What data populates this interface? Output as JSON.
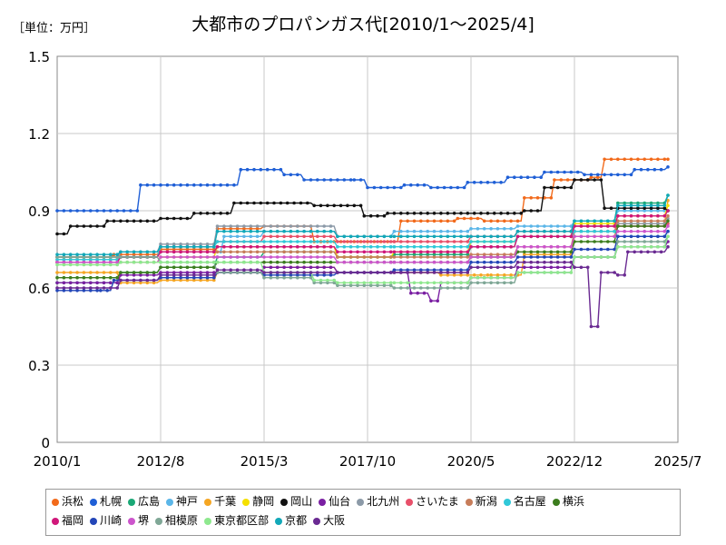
{
  "unit_label": "［単位：万円］",
  "chart_data": {
    "type": "line",
    "title": "大都市のプロパンガス代[2010/1～2025/4]",
    "xlabel": "",
    "ylabel": "",
    "x_ticks": [
      "2010/1",
      "2012/8",
      "2015/3",
      "2017/10",
      "2020/5",
      "2022/12",
      "2025/7"
    ],
    "y_ticks": [
      "0",
      "0.3",
      "0.6",
      "0.9",
      "1.2",
      "1.5"
    ],
    "ylim": [
      0,
      1.5
    ],
    "grid": true,
    "legend_position": "bottom",
    "series": [
      {
        "name": "浜松",
        "color": "#f26a1b",
        "points": [
          [
            "2010/1",
            0.72
          ],
          [
            "2011/6",
            0.73
          ],
          [
            "2012/8",
            0.75
          ],
          [
            "2014/1",
            0.83
          ],
          [
            "2015/3",
            0.84
          ],
          [
            "2016/6",
            0.78
          ],
          [
            "2017/10",
            0.78
          ],
          [
            "2018/8",
            0.86
          ],
          [
            "2020/1",
            0.87
          ],
          [
            "2020/9",
            0.86
          ],
          [
            "2021/9",
            0.95
          ],
          [
            "2022/6",
            1.02
          ],
          [
            "2023/5",
            1.03
          ],
          [
            "2023/9",
            1.1
          ],
          [
            "2025/4",
            1.1
          ]
        ]
      },
      {
        "name": "札幌",
        "color": "#1f5fd6",
        "points": [
          [
            "2010/1",
            0.9
          ],
          [
            "2011/9",
            0.9
          ],
          [
            "2012/2",
            1.0
          ],
          [
            "2014/6",
            1.0
          ],
          [
            "2014/8",
            1.06
          ],
          [
            "2015/9",
            1.04
          ],
          [
            "2016/3",
            1.02
          ],
          [
            "2017/6",
            1.02
          ],
          [
            "2017/10",
            0.99
          ],
          [
            "2018/9",
            1.0
          ],
          [
            "2019/5",
            0.99
          ],
          [
            "2020/4",
            1.01
          ],
          [
            "2021/4",
            1.03
          ],
          [
            "2022/3",
            1.05
          ],
          [
            "2023/3",
            1.04
          ],
          [
            "2024/6",
            1.06
          ],
          [
            "2025/4",
            1.07
          ]
        ]
      },
      {
        "name": "広島",
        "color": "#1aa876",
        "points": [
          [
            "2010/1",
            0.62
          ],
          [
            "2011/8",
            0.66
          ],
          [
            "2012/8",
            0.68
          ],
          [
            "2014/1",
            0.72
          ],
          [
            "2015/3",
            0.74
          ],
          [
            "2017/1",
            0.72
          ],
          [
            "2018/6",
            0.73
          ],
          [
            "2020/5",
            0.76
          ],
          [
            "2021/7",
            0.8
          ],
          [
            "2022/12",
            0.86
          ],
          [
            "2024/1",
            0.93
          ],
          [
            "2025/4",
            0.96
          ]
        ]
      },
      {
        "name": "神戸",
        "color": "#5bb6e8",
        "points": [
          [
            "2010/1",
            0.72
          ],
          [
            "2011/8",
            0.72
          ],
          [
            "2012/8",
            0.74
          ],
          [
            "2014/3",
            0.8
          ],
          [
            "2015/3",
            0.82
          ],
          [
            "2017/1",
            0.8
          ],
          [
            "2018/6",
            0.82
          ],
          [
            "2020/5",
            0.83
          ],
          [
            "2021/7",
            0.84
          ],
          [
            "2022/12",
            0.86
          ],
          [
            "2024/1",
            0.9
          ],
          [
            "2025/4",
            0.9
          ]
        ]
      },
      {
        "name": "千葉",
        "color": "#f5a623",
        "points": [
          [
            "2010/1",
            0.66
          ],
          [
            "2011/8",
            0.62
          ],
          [
            "2012/8",
            0.63
          ],
          [
            "2014/1",
            0.66
          ],
          [
            "2015/3",
            0.68
          ],
          [
            "2017/1",
            0.66
          ],
          [
            "2018/6",
            0.66
          ],
          [
            "2019/8",
            0.65
          ],
          [
            "2020/11",
            0.65
          ],
          [
            "2021/9",
            0.73
          ],
          [
            "2022/12",
            0.8
          ],
          [
            "2024/1",
            0.85
          ],
          [
            "2025/4",
            0.94
          ]
        ]
      },
      {
        "name": "静岡",
        "color": "#f5e000",
        "points": [
          [
            "2010/1",
            0.7
          ],
          [
            "2011/8",
            0.7
          ],
          [
            "2012/8",
            0.72
          ],
          [
            "2014/1",
            0.76
          ],
          [
            "2015/3",
            0.76
          ],
          [
            "2017/1",
            0.72
          ],
          [
            "2018/6",
            0.74
          ],
          [
            "2020/5",
            0.78
          ],
          [
            "2021/7",
            0.8
          ],
          [
            "2022/12",
            0.85
          ],
          [
            "2024/1",
            0.88
          ],
          [
            "2025/4",
            0.92
          ]
        ]
      },
      {
        "name": "岡山",
        "color": "#111111",
        "points": [
          [
            "2010/1",
            0.81
          ],
          [
            "2010/5",
            0.84
          ],
          [
            "2011/4",
            0.86
          ],
          [
            "2012/8",
            0.87
          ],
          [
            "2013/6",
            0.89
          ],
          [
            "2014/6",
            0.93
          ],
          [
            "2016/6",
            0.92
          ],
          [
            "2017/9",
            0.88
          ],
          [
            "2018/4",
            0.89
          ],
          [
            "2021/9",
            0.9
          ],
          [
            "2022/3",
            0.99
          ],
          [
            "2022/12",
            1.02
          ],
          [
            "2023/9",
            0.91
          ],
          [
            "2025/4",
            0.9
          ]
        ]
      },
      {
        "name": "仙台",
        "color": "#7a1fa2",
        "points": [
          [
            "2010/1",
            0.62
          ],
          [
            "2011/8",
            0.65
          ],
          [
            "2012/8",
            0.66
          ],
          [
            "2014/1",
            0.66
          ],
          [
            "2015/3",
            0.68
          ],
          [
            "2017/1",
            0.66
          ],
          [
            "2018/6",
            0.66
          ],
          [
            "2018/11",
            0.58
          ],
          [
            "2019/5",
            0.55
          ],
          [
            "2019/8",
            0.62
          ],
          [
            "2020/5",
            0.64
          ],
          [
            "2021/7",
            0.68
          ],
          [
            "2022/12",
            0.72
          ],
          [
            "2024/1",
            0.76
          ],
          [
            "2025/4",
            0.78
          ]
        ]
      },
      {
        "name": "北九州",
        "color": "#8c9aa8",
        "points": [
          [
            "2010/1",
            0.71
          ],
          [
            "2011/8",
            0.74
          ],
          [
            "2012/8",
            0.77
          ],
          [
            "2014/1",
            0.84
          ],
          [
            "2015/3",
            0.84
          ],
          [
            "2017/1",
            0.8
          ],
          [
            "2018/6",
            0.8
          ],
          [
            "2020/5",
            0.8
          ],
          [
            "2021/7",
            0.82
          ],
          [
            "2022/12",
            0.84
          ],
          [
            "2024/1",
            0.85
          ],
          [
            "2025/4",
            0.87
          ]
        ]
      },
      {
        "name": "さいたま",
        "color": "#e8506a",
        "points": [
          [
            "2010/1",
            0.7
          ],
          [
            "2011/8",
            0.72
          ],
          [
            "2012/8",
            0.76
          ],
          [
            "2014/1",
            0.78
          ],
          [
            "2015/3",
            0.8
          ],
          [
            "2017/1",
            0.78
          ],
          [
            "2018/6",
            0.78
          ],
          [
            "2020/5",
            0.8
          ],
          [
            "2021/7",
            0.82
          ],
          [
            "2022/12",
            0.82
          ],
          [
            "2024/1",
            0.84
          ],
          [
            "2025/4",
            0.85
          ]
        ]
      },
      {
        "name": "新潟",
        "color": "#c77d5a",
        "points": [
          [
            "2010/1",
            0.72
          ],
          [
            "2011/8",
            0.72
          ],
          [
            "2012/8",
            0.74
          ],
          [
            "2014/1",
            0.74
          ],
          [
            "2015/3",
            0.74
          ],
          [
            "2017/1",
            0.72
          ],
          [
            "2018/6",
            0.72
          ],
          [
            "2020/5",
            0.73
          ],
          [
            "2021/7",
            0.76
          ],
          [
            "2022/12",
            0.82
          ],
          [
            "2024/1",
            0.86
          ],
          [
            "2025/4",
            0.88
          ]
        ]
      },
      {
        "name": "名古屋",
        "color": "#30c8d8",
        "points": [
          [
            "2010/1",
            0.71
          ],
          [
            "2011/8",
            0.72
          ],
          [
            "2012/8",
            0.76
          ],
          [
            "2014/1",
            0.78
          ],
          [
            "2015/3",
            0.78
          ],
          [
            "2017/1",
            0.76
          ],
          [
            "2018/6",
            0.76
          ],
          [
            "2020/5",
            0.78
          ],
          [
            "2021/7",
            0.8
          ],
          [
            "2022/12",
            0.82
          ],
          [
            "2024/1",
            0.8
          ],
          [
            "2025/4",
            0.82
          ]
        ]
      },
      {
        "name": "横浜",
        "color": "#3c7d1e",
        "points": [
          [
            "2010/1",
            0.64
          ],
          [
            "2011/8",
            0.66
          ],
          [
            "2012/8",
            0.68
          ],
          [
            "2014/1",
            0.7
          ],
          [
            "2015/3",
            0.7
          ],
          [
            "2017/1",
            0.7
          ],
          [
            "2018/6",
            0.7
          ],
          [
            "2020/5",
            0.72
          ],
          [
            "2021/7",
            0.74
          ],
          [
            "2022/12",
            0.78
          ],
          [
            "2024/1",
            0.84
          ],
          [
            "2025/4",
            0.86
          ]
        ]
      },
      {
        "name": "福岡",
        "color": "#d0177a",
        "points": [
          [
            "2010/1",
            0.7
          ],
          [
            "2011/8",
            0.72
          ],
          [
            "2012/8",
            0.74
          ],
          [
            "2014/1",
            0.76
          ],
          [
            "2015/3",
            0.76
          ],
          [
            "2017/1",
            0.74
          ],
          [
            "2018/6",
            0.74
          ],
          [
            "2020/5",
            0.76
          ],
          [
            "2021/7",
            0.8
          ],
          [
            "2022/12",
            0.84
          ],
          [
            "2024/1",
            0.88
          ],
          [
            "2025/4",
            0.9
          ]
        ]
      },
      {
        "name": "川崎",
        "color": "#2346b8",
        "points": [
          [
            "2010/1",
            0.59
          ],
          [
            "2011/2",
            0.59
          ],
          [
            "2011/6",
            0.63
          ],
          [
            "2012/8",
            0.64
          ],
          [
            "2014/1",
            0.66
          ],
          [
            "2015/3",
            0.65
          ],
          [
            "2017/1",
            0.66
          ],
          [
            "2018/6",
            0.67
          ],
          [
            "2020/5",
            0.7
          ],
          [
            "2021/7",
            0.72
          ],
          [
            "2022/12",
            0.75
          ],
          [
            "2024/1",
            0.8
          ],
          [
            "2025/4",
            0.82
          ]
        ]
      },
      {
        "name": "堺",
        "color": "#cc55cc",
        "points": [
          [
            "2010/1",
            0.7
          ],
          [
            "2011/8",
            0.7
          ],
          [
            "2012/8",
            0.72
          ],
          [
            "2014/1",
            0.72
          ],
          [
            "2015/3",
            0.72
          ],
          [
            "2017/1",
            0.7
          ],
          [
            "2018/6",
            0.7
          ],
          [
            "2020/5",
            0.72
          ],
          [
            "2021/7",
            0.76
          ],
          [
            "2022/12",
            0.8
          ],
          [
            "2024/1",
            0.82
          ],
          [
            "2025/4",
            0.84
          ]
        ]
      },
      {
        "name": "相模原",
        "color": "#7fa796",
        "points": [
          [
            "2010/1",
            0.72
          ],
          [
            "2011/8",
            0.72
          ],
          [
            "2012/8",
            0.7
          ],
          [
            "2014/1",
            0.66
          ],
          [
            "2015/3",
            0.64
          ],
          [
            "2016/6",
            0.62
          ],
          [
            "2017/1",
            0.61
          ],
          [
            "2018/6",
            0.6
          ],
          [
            "2020/5",
            0.62
          ],
          [
            "2021/7",
            0.66
          ],
          [
            "2022/12",
            0.72
          ],
          [
            "2024/1",
            0.78
          ],
          [
            "2025/4",
            0.8
          ]
        ]
      },
      {
        "name": "東京都区部",
        "color": "#8ee88e",
        "points": [
          [
            "2010/1",
            0.69
          ],
          [
            "2011/8",
            0.7
          ],
          [
            "2012/8",
            0.7
          ],
          [
            "2014/1",
            0.7
          ],
          [
            "2015/3",
            0.66
          ],
          [
            "2016/6",
            0.63
          ],
          [
            "2017/1",
            0.62
          ],
          [
            "2018/6",
            0.62
          ],
          [
            "2020/5",
            0.64
          ],
          [
            "2021/7",
            0.66
          ],
          [
            "2022/12",
            0.72
          ],
          [
            "2024/1",
            0.76
          ],
          [
            "2025/4",
            0.8
          ]
        ]
      },
      {
        "name": "京都",
        "color": "#12a8b8",
        "points": [
          [
            "2010/1",
            0.73
          ],
          [
            "2011/8",
            0.74
          ],
          [
            "2012/8",
            0.76
          ],
          [
            "2014/1",
            0.82
          ],
          [
            "2015/3",
            0.82
          ],
          [
            "2017/1",
            0.8
          ],
          [
            "2018/6",
            0.8
          ],
          [
            "2020/5",
            0.8
          ],
          [
            "2021/7",
            0.82
          ],
          [
            "2022/12",
            0.86
          ],
          [
            "2024/1",
            0.92
          ],
          [
            "2025/4",
            0.96
          ]
        ]
      },
      {
        "name": "大阪",
        "color": "#6a2a92",
        "points": [
          [
            "2010/1",
            0.6
          ],
          [
            "2011/8",
            0.63
          ],
          [
            "2012/8",
            0.65
          ],
          [
            "2014/1",
            0.67
          ],
          [
            "2015/3",
            0.66
          ],
          [
            "2017/1",
            0.66
          ],
          [
            "2018/6",
            0.66
          ],
          [
            "2020/5",
            0.68
          ],
          [
            "2021/7",
            0.7
          ],
          [
            "2022/12",
            0.68
          ],
          [
            "2023/5",
            0.45
          ],
          [
            "2023/8",
            0.66
          ],
          [
            "2024/1",
            0.65
          ],
          [
            "2024/4",
            0.74
          ],
          [
            "2025/4",
            0.76
          ]
        ]
      }
    ]
  }
}
